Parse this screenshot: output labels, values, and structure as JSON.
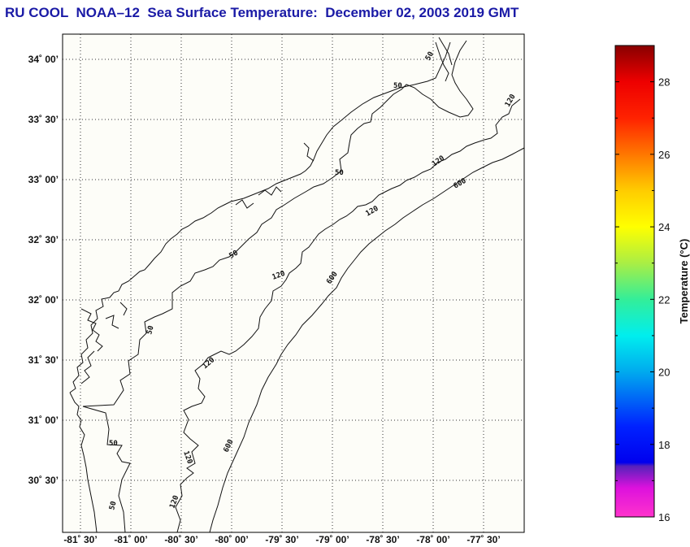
{
  "title": "RU COOL  NOAA–12  Sea Surface Temperature:  December 02, 2003 2019 GMT",
  "map": {
    "background_color": "#fdfdf8",
    "lon_range": [
      -81.66,
      -77.33
    ],
    "lat_range": [
      30.2,
      34.2
    ],
    "lat_ticks": [
      {
        "value": 34.0,
        "label": "34˚ 00’"
      },
      {
        "value": 33.5,
        "label": "33˚ 30’"
      },
      {
        "value": 33.0,
        "label": "33˚ 00’"
      },
      {
        "value": 32.5,
        "label": "32˚ 30’"
      },
      {
        "value": 32.0,
        "label": "32˚ 00’"
      },
      {
        "value": 31.5,
        "label": "31˚ 30’"
      },
      {
        "value": 31.0,
        "label": "31˚ 00’"
      },
      {
        "value": 30.5,
        "label": "30˚ 30’"
      }
    ],
    "lon_ticks": [
      {
        "value": -81.5,
        "label": "-81˚ 30’"
      },
      {
        "value": -81.0,
        "label": "-81˚ 00’"
      },
      {
        "value": -80.5,
        "label": "-80˚ 30’"
      },
      {
        "value": -80.0,
        "label": "-80˚ 00’"
      },
      {
        "value": -79.5,
        "label": "-79˚ 30’"
      },
      {
        "value": -79.0,
        "label": "-79˚ 00’"
      },
      {
        "value": -78.5,
        "label": "-78˚ 30’"
      },
      {
        "value": -78.0,
        "label": "-78˚ 00’"
      },
      {
        "value": -77.5,
        "label": "-77˚ 30’"
      }
    ],
    "grid": true,
    "isobaths": [
      {
        "depth": "50",
        "labels": [
          "50",
          "50",
          "50",
          "50",
          "50",
          "50",
          "50"
        ]
      },
      {
        "depth": "120",
        "labels": [
          "120",
          "120",
          "120",
          "120",
          "120",
          "120",
          "120"
        ]
      },
      {
        "depth": "600",
        "labels": [
          "600",
          "600",
          "600",
          "600"
        ]
      }
    ]
  },
  "colorbar": {
    "label": "Temperature (°C)",
    "range": [
      16,
      29
    ],
    "ticks": [
      {
        "value": 16,
        "label": "16"
      },
      {
        "value": 18,
        "label": "18"
      },
      {
        "value": 20,
        "label": "20"
      },
      {
        "value": 22,
        "label": "22"
      },
      {
        "value": 24,
        "label": "24"
      },
      {
        "value": 26,
        "label": "26"
      },
      {
        "value": 28,
        "label": "28"
      }
    ],
    "color_stops": [
      {
        "value": 16,
        "color": "#ff33cc"
      },
      {
        "value": 16.8,
        "color": "#dd11dd"
      },
      {
        "value": 17.4,
        "color": "#5522bb"
      },
      {
        "value": 17.5,
        "color": "#0000ee"
      },
      {
        "value": 18.5,
        "color": "#0022ff"
      },
      {
        "value": 20,
        "color": "#00aaee"
      },
      {
        "value": 21,
        "color": "#00eeee"
      },
      {
        "value": 22,
        "color": "#33ee99"
      },
      {
        "value": 23,
        "color": "#aaee44"
      },
      {
        "value": 24,
        "color": "#ffff00"
      },
      {
        "value": 25,
        "color": "#ffcc00"
      },
      {
        "value": 26,
        "color": "#ff7700"
      },
      {
        "value": 27,
        "color": "#ff2200"
      },
      {
        "value": 28,
        "color": "#ee0000"
      },
      {
        "value": 29,
        "color": "#880000"
      }
    ]
  }
}
